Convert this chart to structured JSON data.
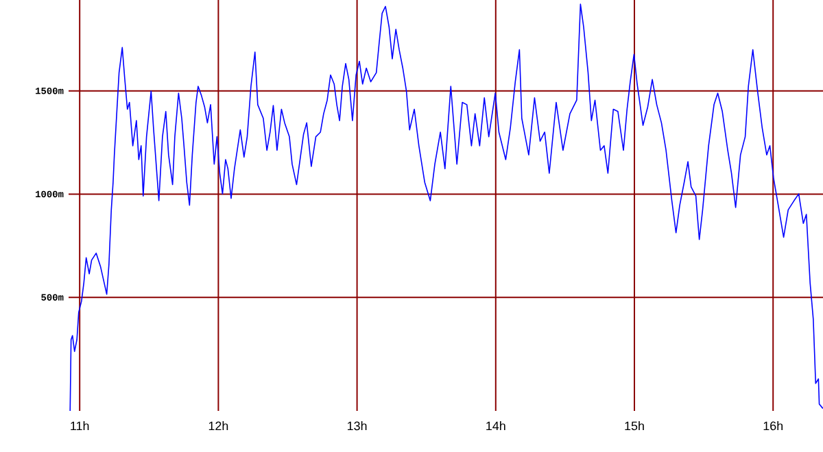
{
  "chart_data": {
    "type": "line",
    "x": [
      10.931,
      10.938,
      10.948,
      10.963,
      10.98,
      10.993,
      11.013,
      11.03,
      11.047,
      11.069,
      11.086,
      11.119,
      11.151,
      11.195,
      11.211,
      11.228,
      11.241,
      11.25,
      11.267,
      11.284,
      11.307,
      11.324,
      11.344,
      11.359,
      11.383,
      11.409,
      11.426,
      11.443,
      11.458,
      11.482,
      11.515,
      11.532,
      11.571,
      11.597,
      11.621,
      11.641,
      11.67,
      11.686,
      11.713,
      11.736,
      11.752,
      11.772,
      11.792,
      11.812,
      11.839,
      11.854,
      11.878,
      11.901,
      11.921,
      11.944,
      11.97,
      11.99,
      12.01,
      12.03,
      12.052,
      12.069,
      12.092,
      12.116,
      12.158,
      12.185,
      12.208,
      12.235,
      12.264,
      12.284,
      12.324,
      12.35,
      12.373,
      12.396,
      12.423,
      12.455,
      12.478,
      12.512,
      12.532,
      12.564,
      12.587,
      12.614,
      12.637,
      12.67,
      12.703,
      12.736,
      12.759,
      12.785,
      12.809,
      12.835,
      12.854,
      12.874,
      12.894,
      12.918,
      12.941,
      12.967,
      12.993,
      13.017,
      13.04,
      13.067,
      13.099,
      13.139,
      13.158,
      13.181,
      13.205,
      13.231,
      13.254,
      13.28,
      13.304,
      13.33,
      13.356,
      13.379,
      13.413,
      13.446,
      13.488,
      13.528,
      13.561,
      13.601,
      13.634,
      13.676,
      13.72,
      13.759,
      13.792,
      13.825,
      13.851,
      13.884,
      13.918,
      13.95,
      13.997,
      14.023,
      14.072,
      14.106,
      14.141,
      14.171,
      14.188,
      14.238,
      14.28,
      14.32,
      14.353,
      14.386,
      14.436,
      14.485,
      14.535,
      14.584,
      14.611,
      14.634,
      14.666,
      14.69,
      14.716,
      14.755,
      14.782,
      14.809,
      14.848,
      14.881,
      14.921,
      14.947,
      14.97,
      14.997,
      15.02,
      15.062,
      15.096,
      15.129,
      15.161,
      15.195,
      15.228,
      15.27,
      15.3,
      15.327,
      15.359,
      15.386,
      15.409,
      15.443,
      15.468,
      15.492,
      15.535,
      15.574,
      15.601,
      15.634,
      15.673,
      15.7,
      15.73,
      15.765,
      15.799,
      15.822,
      15.854,
      15.888,
      15.921,
      15.954,
      15.977,
      16.003,
      16.037,
      16.076,
      16.109,
      16.151,
      16.185,
      16.218,
      16.24,
      16.267,
      16.29,
      16.307,
      16.327,
      16.333,
      16.359
    ],
    "values": [
      -50,
      295,
      315,
      238,
      295,
      428,
      481,
      570,
      692,
      614,
      680,
      714,
      647,
      515,
      659,
      924,
      1057,
      1190,
      1389,
      1588,
      1710,
      1566,
      1411,
      1444,
      1234,
      1356,
      1167,
      1234,
      991,
      1278,
      1499,
      1323,
      968,
      1278,
      1400,
      1190,
      1046,
      1278,
      1489,
      1367,
      1234,
      1057,
      946,
      1190,
      1444,
      1522,
      1477,
      1422,
      1345,
      1433,
      1145,
      1278,
      1101,
      1001,
      1167,
      1123,
      979,
      1123,
      1311,
      1179,
      1278,
      1522,
      1688,
      1433,
      1367,
      1212,
      1300,
      1429,
      1212,
      1411,
      1345,
      1278,
      1145,
      1046,
      1157,
      1289,
      1345,
      1134,
      1278,
      1300,
      1389,
      1455,
      1577,
      1533,
      1433,
      1356,
      1522,
      1632,
      1555,
      1356,
      1577,
      1643,
      1533,
      1610,
      1544,
      1588,
      1721,
      1876,
      1909,
      1809,
      1655,
      1798,
      1699,
      1610,
      1499,
      1311,
      1411,
      1234,
      1057,
      968,
      1145,
      1300,
      1123,
      1522,
      1145,
      1444,
      1433,
      1234,
      1389,
      1234,
      1466,
      1278,
      1489,
      1300,
      1167,
      1323,
      1544,
      1699,
      1367,
      1190,
      1466,
      1256,
      1300,
      1101,
      1444,
      1212,
      1389,
      1455,
      1920,
      1809,
      1588,
      1356,
      1455,
      1212,
      1234,
      1101,
      1411,
      1400,
      1212,
      1411,
      1544,
      1677,
      1533,
      1333,
      1422,
      1555,
      1433,
      1345,
      1212,
      968,
      813,
      946,
      1057,
      1157,
      1035,
      991,
      780,
      924,
      1234,
      1433,
      1489,
      1400,
      1212,
      1101,
      935,
      1190,
      1278,
      1522,
      1699,
      1499,
      1323,
      1190,
      1234,
      1079,
      946,
      791,
      924,
      968,
      1001,
      858,
      902,
      570,
      393,
      83,
      105,
      -17,
      -38
    ],
    "color": "#0000ff",
    "xlim": [
      10.92,
      16.36
    ],
    "ylim": [
      -50,
      1940
    ],
    "xticks": [
      {
        "value": 11,
        "label": "11h"
      },
      {
        "value": 12,
        "label": "12h"
      },
      {
        "value": 13,
        "label": "13h"
      },
      {
        "value": 14,
        "label": "14h"
      },
      {
        "value": 15,
        "label": "15h"
      },
      {
        "value": 16,
        "label": "16h"
      }
    ],
    "yticks": [
      {
        "value": 500,
        "label": "500m"
      },
      {
        "value": 1000,
        "label": "1000m"
      },
      {
        "value": 1500,
        "label": "1500m"
      }
    ],
    "grid": true,
    "marker": "none",
    "line_style": "solid"
  }
}
